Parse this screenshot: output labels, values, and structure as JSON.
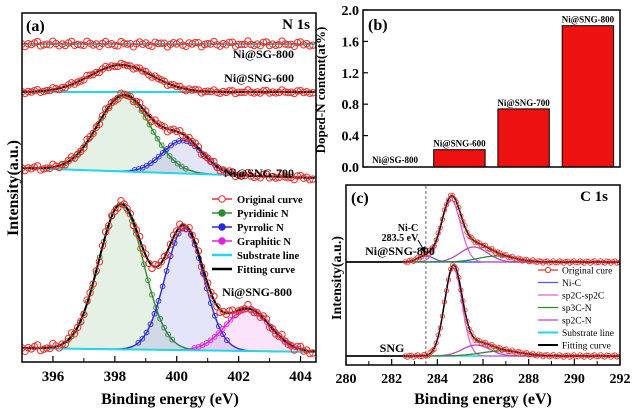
{
  "colors": {
    "original": "#e8302a",
    "pyridinic": "#2e8b2e",
    "pyrrolic": "#2828d8",
    "graphitic": "#e020e0",
    "substrate": "#22d8e8",
    "fitting": "#000000",
    "bar": "#ee1111",
    "nic": "#5555ee",
    "sp2": "#e060e0",
    "sp3": "#bb44bb"
  },
  "chart_data": [
    {
      "id": "a",
      "type": "line",
      "panel_label": "(a)",
      "corner_label": "N 1s",
      "xlabel": "Binding energy (eV)",
      "ylabel": "Intensity(a.u.)",
      "x_range": [
        395.0,
        404.5
      ],
      "x_ticks": [
        "396",
        "398",
        "400",
        "402",
        "404"
      ],
      "x_tick_values": [
        396,
        398,
        400,
        402,
        404
      ],
      "curve_labels": [
        "Ni@SG-800",
        "Ni@SNG-600",
        "Ni@SNG-700",
        "Ni@SNG-800"
      ],
      "legend": [
        "Original curve",
        "Pyridinic N",
        "Pyrrolic N",
        "Graphitic N",
        "Substrate line",
        "Fitting curve"
      ],
      "legend_placement": "middle-right"
    },
    {
      "id": "b",
      "type": "bar",
      "panel_label": "(b)",
      "ylabel": "Doped-N content(at%)",
      "categories": [
        "Ni@SG-800",
        "Ni@SNG-600",
        "Ni@SNG-700",
        "Ni@SNG-800"
      ],
      "values": [
        0.0,
        0.22,
        0.74,
        1.8
      ],
      "ylim": [
        0.0,
        2.0
      ],
      "y_ticks": [
        "0.0",
        "0.4",
        "0.8",
        "1.2",
        "1.6",
        "2.0"
      ],
      "y_tick_values": [
        0.0,
        0.4,
        0.8,
        1.2,
        1.6,
        2.0
      ]
    },
    {
      "id": "c",
      "type": "line",
      "panel_label": "(c)",
      "corner_label": "C 1s",
      "xlabel": "Binding energy (eV)",
      "ylabel": "Intensity(a.u.)",
      "x_range": [
        280,
        292
      ],
      "x_ticks": [
        "280",
        "282",
        "284",
        "286",
        "288",
        "290",
        "292"
      ],
      "x_tick_values": [
        280,
        282,
        284,
        286,
        288,
        290,
        292
      ],
      "curve_labels": [
        "Ni@SNG-800",
        "SNG"
      ],
      "annotation_top": "Ni-C",
      "annotation_bottom": "283.5 eV",
      "annotation_x": 283.5,
      "legend": [
        "Original cure",
        "Ni-C",
        "sp2C-sp2C",
        "sp3C-N",
        "sp2C-N",
        "Substrate line",
        "Fitting curve"
      ],
      "legend_placement": "lower-right"
    }
  ]
}
